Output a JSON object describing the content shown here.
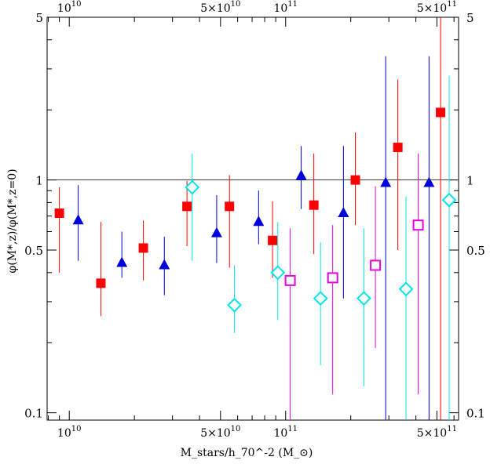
{
  "chart_data": {
    "type": "scatter",
    "title": "",
    "xlabel": "M_stars/h_70^-2 (M_⊙)",
    "ylabel": "φ(M*,z)/φ(M*,z=0)",
    "x_scale": "log",
    "y_scale": "log",
    "xlim": [
      7900000000,
      630000000000
    ],
    "ylim": [
      0.093,
      5
    ],
    "reference_line_y": 1,
    "grid": false,
    "legend": "none",
    "x_tick_labels": [
      {
        "value": 10000000000,
        "base": "10",
        "exp": "10",
        "pre": ""
      },
      {
        "value": 50000000000,
        "base": "10",
        "exp": "10",
        "pre": "5×"
      },
      {
        "value": 100000000000,
        "base": "10",
        "exp": "11",
        "pre": ""
      },
      {
        "value": 500000000000,
        "base": "10",
        "exp": "11",
        "pre": "5×"
      }
    ],
    "y_tick_labels": [
      {
        "value": 0.1,
        "label": "0.1"
      },
      {
        "value": 0.5,
        "label": "0.5"
      },
      {
        "value": 1,
        "label": "1"
      },
      {
        "value": 5,
        "label": "5"
      }
    ],
    "series": [
      {
        "marker": "filled-square",
        "color": "#ff0000",
        "points": [
          {
            "x": 9000000000,
            "y": 0.72,
            "lo": 0.4,
            "hi": 0.93
          },
          {
            "x": 14000000000,
            "y": 0.36,
            "lo": 0.26,
            "hi": 0.66
          },
          {
            "x": 22000000000,
            "y": 0.51,
            "lo": 0.37,
            "hi": 0.67
          },
          {
            "x": 35000000000,
            "y": 0.77,
            "lo": 0.52,
            "hi": 0.99
          },
          {
            "x": 55000000000,
            "y": 0.77,
            "lo": 0.42,
            "hi": 1.05
          },
          {
            "x": 87000000000,
            "y": 0.55,
            "lo": 0.38,
            "hi": 0.81
          },
          {
            "x": 135000000000,
            "y": 0.78,
            "lo": 0.48,
            "hi": 1.3
          },
          {
            "x": 210000000000,
            "y": 1.0,
            "lo": 0.64,
            "hi": 1.6
          },
          {
            "x": 330000000000,
            "y": 1.38,
            "lo": 0.5,
            "hi": 2.7
          },
          {
            "x": 520000000000,
            "y": 1.95,
            "lo": 0.093,
            "hi": 5.0
          }
        ]
      },
      {
        "marker": "filled-triangle",
        "color": "#0000dd",
        "points": [
          {
            "x": 11000000000,
            "y": 0.67,
            "lo": 0.45,
            "hi": 0.95
          },
          {
            "x": 17500000000,
            "y": 0.44,
            "lo": 0.38,
            "hi": 0.6
          },
          {
            "x": 27500000000,
            "y": 0.43,
            "lo": 0.32,
            "hi": 0.57
          },
          {
            "x": 48000000000,
            "y": 0.59,
            "lo": 0.44,
            "hi": 0.86
          },
          {
            "x": 75000000000,
            "y": 0.66,
            "lo": 0.53,
            "hi": 0.9
          },
          {
            "x": 118000000000,
            "y": 1.04,
            "lo": 0.75,
            "hi": 1.4
          },
          {
            "x": 185000000000,
            "y": 0.72,
            "lo": 0.31,
            "hi": 1.4
          },
          {
            "x": 290000000000,
            "y": 0.97,
            "lo": 0.093,
            "hi": 3.4
          },
          {
            "x": 460000000000,
            "y": 0.97,
            "lo": 0.093,
            "hi": 3.4
          }
        ]
      },
      {
        "marker": "open-diamond",
        "color": "#00e5e5",
        "points": [
          {
            "x": 37000000000,
            "y": 0.93,
            "lo": 0.45,
            "hi": 1.3
          },
          {
            "x": 58000000000,
            "y": 0.29,
            "lo": 0.22,
            "hi": 0.43
          },
          {
            "x": 92000000000,
            "y": 0.4,
            "lo": 0.25,
            "hi": 0.66
          },
          {
            "x": 145000000000,
            "y": 0.31,
            "lo": 0.16,
            "hi": 0.54
          },
          {
            "x": 230000000000,
            "y": 0.31,
            "lo": 0.13,
            "hi": 0.62
          },
          {
            "x": 360000000000,
            "y": 0.34,
            "lo": 0.093,
            "hi": 0.85
          },
          {
            "x": 570000000000,
            "y": 0.82,
            "lo": 0.093,
            "hi": 2.8
          }
        ]
      },
      {
        "marker": "open-square",
        "color": "#e600e6",
        "points": [
          {
            "x": 105000000000,
            "y": 0.37,
            "lo": 0.093,
            "hi": 0.62
          },
          {
            "x": 165000000000,
            "y": 0.38,
            "lo": 0.12,
            "hi": 0.64
          },
          {
            "x": 260000000000,
            "y": 0.43,
            "lo": 0.19,
            "hi": 0.94
          },
          {
            "x": 410000000000,
            "y": 0.64,
            "lo": 0.12,
            "hi": 1.3
          }
        ]
      }
    ]
  }
}
